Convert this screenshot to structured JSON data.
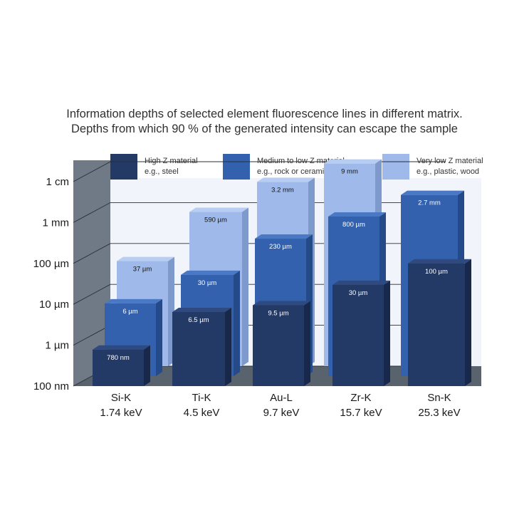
{
  "title_lines": [
    "Information depths of selected element fluorescence lines in different matrix.",
    "Depths from which 90 % of the generated intensity can escape the sample"
  ],
  "colors": {
    "high_z": "#243a66",
    "medium_z": "#3361ad",
    "very_low_z": "#9eb9ea",
    "back_wall": "#f1f4fa",
    "side_wall": "#6f7a86",
    "floor": "#59636e"
  },
  "chart_data": {
    "type": "bar",
    "scale": "log",
    "title": "Information depths of selected element fluorescence lines in different matrix. Depths from which 90 % of the generated intensity can escape the sample",
    "y_tick_labels": [
      "100 nm",
      "1 µm",
      "10 µm",
      "100 µm",
      "1 mm",
      "1 cm"
    ],
    "y_tick_values_m": [
      1e-07,
      1e-06,
      1e-05,
      0.0001,
      0.001,
      0.01
    ],
    "ylim_m": [
      1e-07,
      0.01
    ],
    "legend_position": "top",
    "categories": [
      {
        "line": "Si-K",
        "energy": "1.74 keV"
      },
      {
        "line": "Ti-K",
        "energy": "4.5 keV"
      },
      {
        "line": "Au-L",
        "energy": "9.7 keV"
      },
      {
        "line": "Zr-K",
        "energy": "15.7 keV"
      },
      {
        "line": "Sn-K",
        "energy": "25.3 keV"
      }
    ],
    "series": [
      {
        "name": "High Z material",
        "subtitle": "e.g., steel",
        "values_m": [
          7.8e-07,
          6.5e-06,
          9.5e-06,
          3e-05,
          0.0001
        ],
        "labels": [
          "780 nm",
          "6.5 µm",
          "9.5 µm",
          "30 µm",
          "100 µm"
        ]
      },
      {
        "name": "Medium to low Z material",
        "subtitle": "e.g., rock or ceramics",
        "values_m": [
          6e-06,
          3e-05,
          0.00023,
          0.0008,
          0.0027
        ],
        "labels": [
          "6 µm",
          "30 µm",
          "230 µm",
          "800 µm",
          "2.7 mm"
        ]
      },
      {
        "name": "Very low Z material",
        "subtitle": "e.g., plastic, wood",
        "values_m": [
          3.7e-05,
          0.00059,
          0.0032,
          0.009,
          null
        ],
        "labels": [
          "37 µm",
          "590 µm",
          "3.2 mm",
          "9 mm",
          ""
        ]
      }
    ]
  }
}
